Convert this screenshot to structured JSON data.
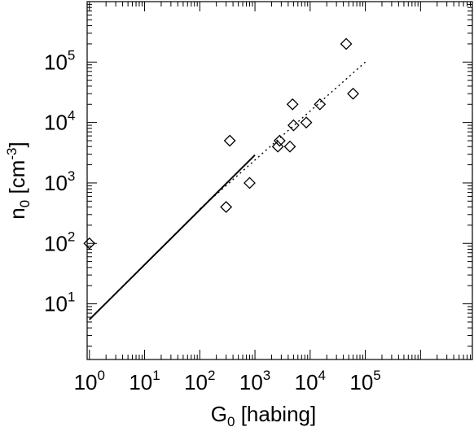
{
  "chart_data": {
    "type": "scatter",
    "title": "",
    "xlabel": {
      "base": "G",
      "sub": "0",
      "rest": " [habing]"
    },
    "ylabel": {
      "base": "n",
      "sub": "0",
      "rest": " [cm",
      "sup": "-3",
      "close": "]"
    },
    "xscale": "log",
    "yscale": "log",
    "xlim": [
      0.91,
      8700000
    ],
    "ylim": [
      1.2,
      1000000
    ],
    "grid": false,
    "x_ticks": [
      {
        "value": 1,
        "base": "10",
        "exp": "0"
      },
      {
        "value": 10,
        "base": "10",
        "exp": "1"
      },
      {
        "value": 100,
        "base": "10",
        "exp": "2"
      },
      {
        "value": 1000,
        "base": "10",
        "exp": "3"
      },
      {
        "value": 10000,
        "base": "10",
        "exp": "4"
      },
      {
        "value": 100000,
        "base": "10",
        "exp": "5"
      }
    ],
    "y_ticks": [
      {
        "value": 10,
        "base": "10",
        "exp": "1"
      },
      {
        "value": 100,
        "base": "10",
        "exp": "2"
      },
      {
        "value": 1000,
        "base": "10",
        "exp": "3"
      },
      {
        "value": 10000,
        "base": "10",
        "exp": "4"
      },
      {
        "value": 100000,
        "base": "10",
        "exp": "5"
      }
    ],
    "series": [
      {
        "kind": "points",
        "marker": "diamond",
        "x": [
          1,
          300,
          350,
          800,
          2600,
          2800,
          4300,
          4800,
          5000,
          8500,
          15000,
          45000,
          60000
        ],
        "y": [
          100,
          400,
          5000,
          1000,
          4000,
          5000,
          4000,
          20000,
          9000,
          10000,
          20000,
          200000,
          30000
        ]
      },
      {
        "kind": "line",
        "style": "solid",
        "x": [
          1,
          1000
        ],
        "y": [
          5.5,
          2900
        ]
      },
      {
        "kind": "line",
        "style": "dotted",
        "x": [
          100,
          100000
        ],
        "y": [
          370,
          100000
        ]
      }
    ]
  }
}
